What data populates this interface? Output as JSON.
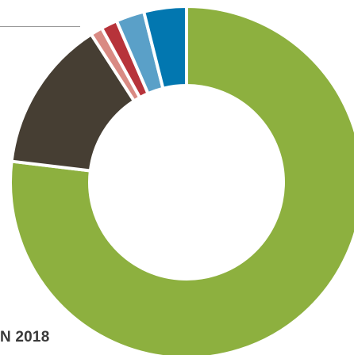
{
  "caption": "N 2018",
  "chart_data": {
    "type": "pie",
    "style": "donut",
    "title": "",
    "slices": [
      {
        "value": 76.9,
        "color": "#8db03f"
      },
      {
        "value": 14.0,
        "color": "#463e33"
      },
      {
        "value": 1.1,
        "color": "#d98a83"
      },
      {
        "value": 1.5,
        "color": "#b7333a"
      },
      {
        "value": 2.6,
        "color": "#5aa0c8"
      },
      {
        "value": 3.9,
        "color": "#0277b0"
      }
    ],
    "legend": "none",
    "grid": false
  }
}
